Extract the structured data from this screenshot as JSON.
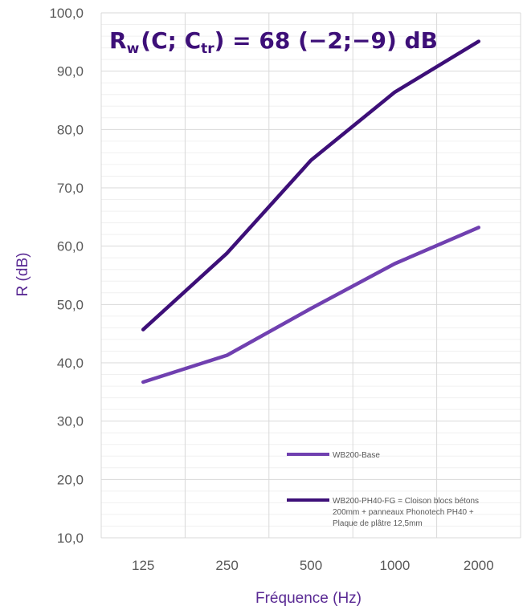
{
  "chart_data": {
    "type": "line",
    "title_parts": {
      "r": "R",
      "w": "w",
      "open": "(C; C",
      "tr": "tr",
      "close": ") = 68 (−2;−9) dB"
    },
    "xlabel": "Fréquence (Hz)",
    "ylabel": "R (dB)",
    "categories": [
      "125",
      "250",
      "500",
      "1000",
      "2000"
    ],
    "ylim": [
      10,
      100
    ],
    "yticks": [
      "10,0",
      "20,0",
      "30,0",
      "40,0",
      "50,0",
      "60,0",
      "70,0",
      "80,0",
      "90,0",
      "100,0"
    ],
    "grid": true,
    "legend_position": "bottom-right",
    "series": [
      {
        "name": "WB200-Base",
        "legend_lines": [
          "WB200-Base"
        ],
        "color": "#7040b0",
        "values": [
          36.7,
          41.3,
          49.3,
          57.0,
          63.2
        ]
      },
      {
        "name": "WB200-PH40-FG = Cloison blocs bétons 200mm + panneaux Phonotech PH40 + Plaque de plâtre 12,5mm",
        "legend_lines": [
          "WB200-PH40-FG = Cloison blocs bétons",
          "200mm + panneaux Phonotech PH40 +",
          "Plaque de plâtre 12,5mm"
        ],
        "color": "#3d0f78",
        "values": [
          45.7,
          58.8,
          74.7,
          86.4,
          95.1
        ]
      }
    ]
  }
}
